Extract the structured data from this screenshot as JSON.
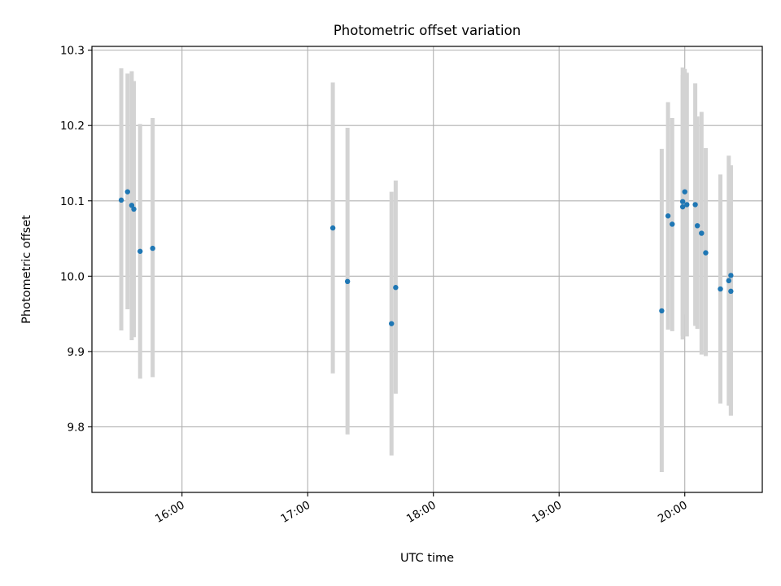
{
  "chart_data": {
    "type": "scatter",
    "title": "Photometric offset variation",
    "xlabel": "UTC time",
    "ylabel": "Photometric offset",
    "x_axis": "time",
    "xlim": [
      "15:17",
      "20:37"
    ],
    "ylim": [
      9.713,
      10.305
    ],
    "x_ticks": [
      "16:00",
      "17:00",
      "18:00",
      "19:00",
      "20:00"
    ],
    "y_ticks": [
      9.8,
      9.9,
      10.0,
      10.1,
      10.2,
      10.3
    ],
    "y_tick_labels": [
      "9.8",
      "9.9",
      "10.0",
      "10.1",
      "10.2",
      "10.3"
    ],
    "grid": true,
    "colors": {
      "points": "#1f77b4",
      "error_bars": "#d3d3d3",
      "grid": "#b0b0b0"
    },
    "series": [
      {
        "points": [
          {
            "x": "15:31",
            "y": 10.101,
            "err_low": 9.928,
            "err_high": 10.276
          },
          {
            "x": "15:34",
            "y": 10.112,
            "err_low": 9.956,
            "err_high": 10.269
          },
          {
            "x": "15:36",
            "y": 10.094,
            "err_low": 9.915,
            "err_high": 10.272
          },
          {
            "x": "15:37",
            "y": 10.089,
            "err_low": 9.919,
            "err_high": 10.259
          },
          {
            "x": "15:40",
            "y": 10.033,
            "err_low": 9.864,
            "err_high": 10.202
          },
          {
            "x": "15:46",
            "y": 10.037,
            "err_low": 9.866,
            "err_high": 10.21
          },
          {
            "x": "17:12",
            "y": 10.064,
            "err_low": 9.871,
            "err_high": 10.257
          },
          {
            "x": "17:19",
            "y": 9.993,
            "err_low": 9.79,
            "err_high": 10.197
          },
          {
            "x": "17:40",
            "y": 9.937,
            "err_low": 9.762,
            "err_high": 10.112
          },
          {
            "x": "17:42",
            "y": 9.985,
            "err_low": 9.844,
            "err_high": 10.127
          },
          {
            "x": "19:49",
            "y": 9.954,
            "err_low": 9.74,
            "err_high": 10.169
          },
          {
            "x": "19:52",
            "y": 10.08,
            "err_low": 9.929,
            "err_high": 10.231
          },
          {
            "x": "19:54",
            "y": 10.069,
            "err_low": 9.927,
            "err_high": 10.21
          },
          {
            "x": "19:59",
            "y": 10.092,
            "err_low": 9.916,
            "err_high": 10.267
          },
          {
            "x": "19:59",
            "y": 10.099,
            "err_low": 9.921,
            "err_high": 10.277
          },
          {
            "x": "20:00",
            "y": 10.112,
            "err_low": 9.949,
            "err_high": 10.275
          },
          {
            "x": "20:01",
            "y": 10.095,
            "err_low": 9.92,
            "err_high": 10.27
          },
          {
            "x": "20:05",
            "y": 10.095,
            "err_low": 9.934,
            "err_high": 10.256
          },
          {
            "x": "20:06",
            "y": 10.067,
            "err_low": 9.93,
            "err_high": 10.212
          },
          {
            "x": "20:08",
            "y": 10.057,
            "err_low": 9.896,
            "err_high": 10.218
          },
          {
            "x": "20:10",
            "y": 10.031,
            "err_low": 9.894,
            "err_high": 10.17
          },
          {
            "x": "20:17",
            "y": 9.983,
            "err_low": 9.831,
            "err_high": 10.135
          },
          {
            "x": "20:21",
            "y": 9.994,
            "err_low": 9.828,
            "err_high": 10.16
          },
          {
            "x": "20:22",
            "y": 10.001,
            "err_low": 9.815,
            "err_high": 10.147
          },
          {
            "x": "20:22",
            "y": 9.98,
            "err_low": 9.815,
            "err_high": 10.147
          }
        ]
      }
    ]
  }
}
